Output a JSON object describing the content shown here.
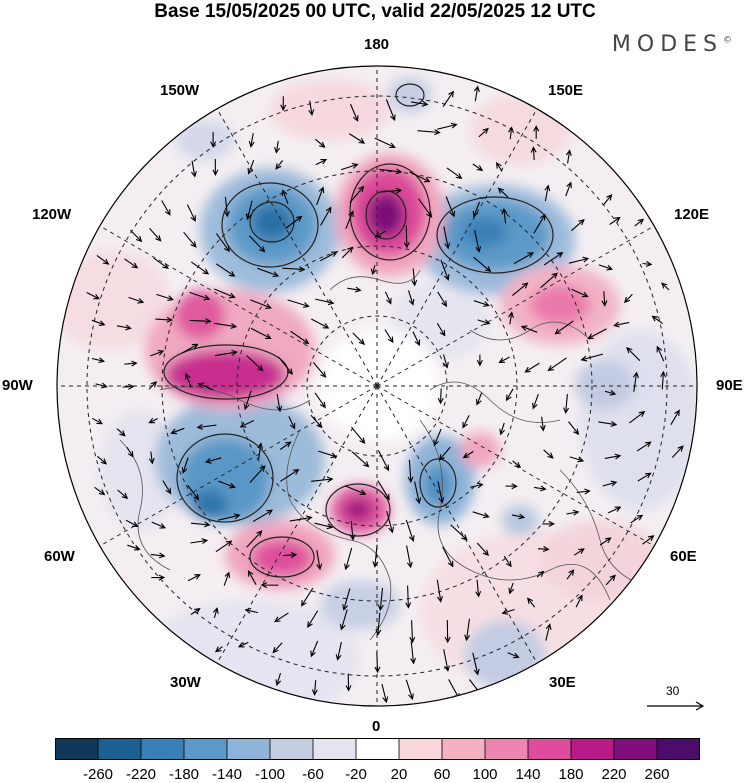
{
  "header": {
    "title": "Base 15/05/2025 00 UTC, valid 22/05/2025 12 UTC",
    "brand": "MODES",
    "brand_mark": "©"
  },
  "map": {
    "projection": "north polar stereographic",
    "longitude_labels": {
      "top": "180",
      "top_left": "150W",
      "top_right": "150E",
      "upper_left": "120W",
      "upper_right": "120E",
      "left": "90W",
      "right": "90E",
      "lower_left": "60W",
      "lower_right": "60E",
      "bottom_left": "30W",
      "bottom_right": "30E",
      "bottom": "0"
    },
    "wind_reference": {
      "label": "30"
    }
  },
  "colorbar": {
    "ticks": [
      "-260",
      "-220",
      "-180",
      "-140",
      "-100",
      "-60",
      "-20",
      "20",
      "60",
      "100",
      "140",
      "180",
      "220",
      "260"
    ],
    "colors": [
      "#10385a",
      "#1b5f93",
      "#3a80b8",
      "#5c99c8",
      "#8eb4d9",
      "#c5cde3",
      "#e4e3ef",
      "#ffffff",
      "#f9d6da",
      "#f3b1c2",
      "#ee85b0",
      "#e04b9d",
      "#b81a8a",
      "#800f7d",
      "#4b0c6b"
    ]
  }
}
